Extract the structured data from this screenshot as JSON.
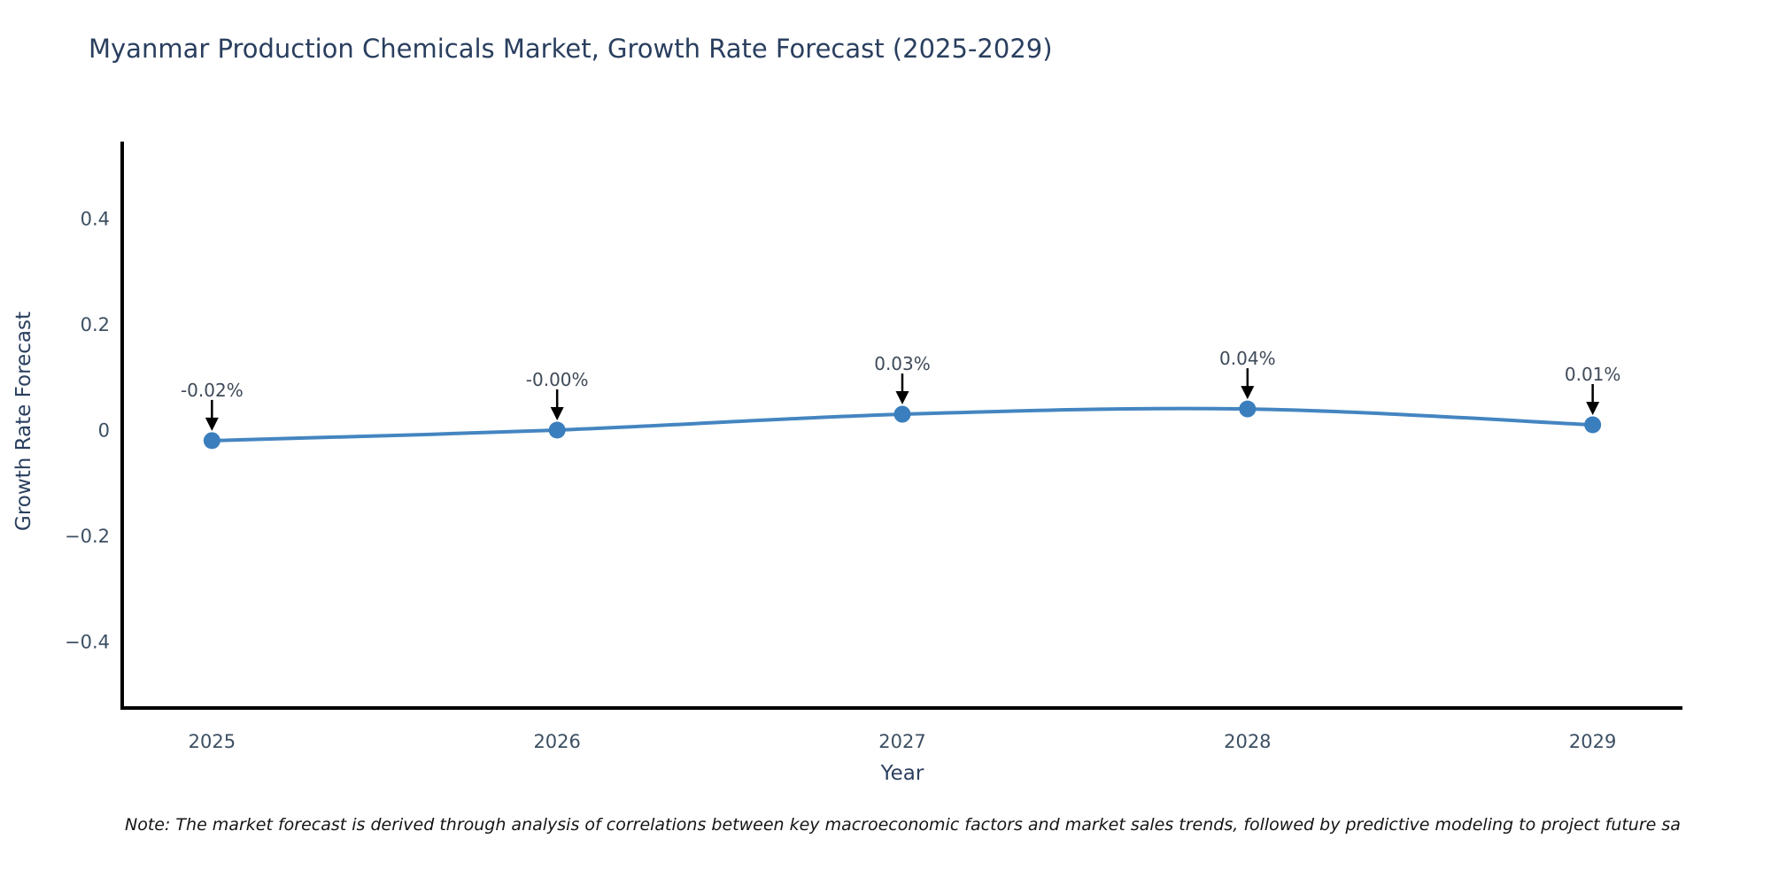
{
  "title": "Myanmar Production Chemicals Market, Growth Rate Forecast (2025-2029)",
  "note": "Note: The market forecast is derived through analysis of correlations between key macroeconomic factors and market sales trends, followed by predictive modeling to project future sa",
  "chart_data": {
    "type": "line",
    "title": "Myanmar Production Chemicals Market, Growth Rate Forecast (2025-2029)",
    "xlabel": "Year",
    "ylabel": "Growth Rate Forecast",
    "x": [
      2025,
      2026,
      2027,
      2028,
      2029
    ],
    "series": [
      {
        "name": "Growth Rate Forecast",
        "values": [
          -0.02,
          -0.0,
          0.03,
          0.04,
          0.01
        ]
      }
    ],
    "point_labels": [
      "-0.02%",
      "-0.00%",
      "0.03%",
      "0.04%",
      "0.01%"
    ],
    "xtick_labels": [
      "2025",
      "2026",
      "2027",
      "2028",
      "2029"
    ],
    "yticks": [
      {
        "value": 0.4,
        "label": "0.4"
      },
      {
        "value": 0.2,
        "label": "0.2"
      },
      {
        "value": 0,
        "label": "0"
      },
      {
        "value": -0.2,
        "label": "−0.2"
      },
      {
        "value": -0.4,
        "label": "−0.4"
      }
    ],
    "xlim": [
      2024.74,
      2029.26
    ],
    "ylim": [
      -0.526,
      0.546
    ],
    "grid": false,
    "legend": false,
    "annotation_arrows": "down-arrow-to-point",
    "colors": {
      "line": "#4485c1",
      "marker": "#3a7ebd",
      "axis": "#000000",
      "tick_text": "#3d4f63",
      "annotation_text": "#3f4a58",
      "title_text": "#2a3f5f",
      "note_text": "#141414"
    }
  }
}
